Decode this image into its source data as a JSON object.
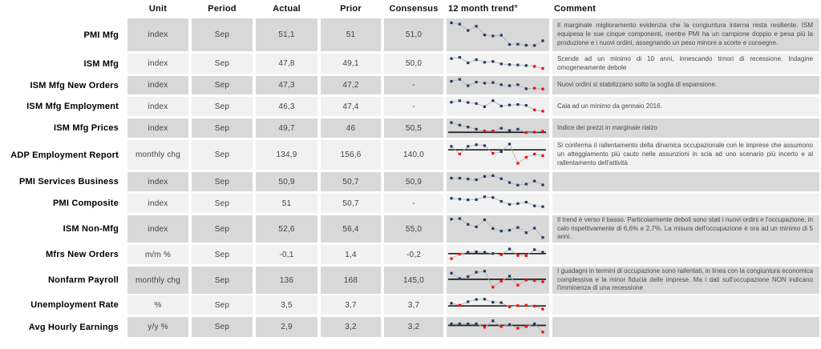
{
  "header": {
    "labels_col": "",
    "unit": "Unit",
    "period": "Period",
    "actual": "Actual",
    "prior": "Prior",
    "consensus": "Consensus",
    "trend": "12 month trend°",
    "comment": "Comment"
  },
  "colors": {
    "navy": "#1f3864",
    "red": "#ff0000",
    "connector": "#b3b3b3",
    "refline": "#1f1f1f",
    "row_dark": "#d8d8d8",
    "row_light": "#f1f1f1"
  },
  "rows": [
    {
      "label": "PMI Mfg",
      "unit": "index",
      "period": "Sep",
      "actual": "51,1",
      "prior": "51",
      "consensus": "51,0",
      "comment": "Il marginale miglioramento evidenzia che la congiuntura interna resta resiliente. ISM equipesa le sue cinque componenti, mentre PMI ha un campione doppio e pesa più la produzione e i nuovi ordini, assegnando un peso minore a scorte e consegne.",
      "trend": {
        "ref": null,
        "points": [
          6,
          11,
          35,
          19,
          52,
          56,
          53,
          88,
          87,
          91,
          92,
          74
        ],
        "red": []
      }
    },
    {
      "label": "ISM Mfg",
      "unit": "index",
      "period": "Sep",
      "actual": "47,8",
      "prior": "49,1",
      "consensus": "50,0",
      "comment": "Scende ad un minimo di 10 anni, innescando timori di recessione. Indagine omogeneamente debole",
      "trend": {
        "ref": null,
        "points": [
          16,
          7,
          47,
          24,
          43,
          37,
          55,
          60,
          63,
          67,
          73,
          88
        ],
        "red": [
          10,
          11
        ]
      }
    },
    {
      "label": "ISM Mfg New Orders",
      "unit": "index",
      "period": "Sep",
      "actual": "47,3",
      "prior": "47,2",
      "consensus": "-",
      "comment": "Nuovi ordini si stabilizzano sotto la soglia di espansione.",
      "trend": {
        "ref": null,
        "points": [
          20,
          4,
          57,
          27,
          36,
          31,
          49,
          57,
          49,
          82,
          78,
          85
        ],
        "red": [
          10,
          11
        ]
      }
    },
    {
      "label": "ISM Mfg Employment",
      "unit": "index",
      "period": "Sep",
      "actual": "46,3",
      "prior": "47,4",
      "consensus": "-",
      "comment": "Cala ad un minimo da gennaio 2016.",
      "trend": {
        "ref": null,
        "points": [
          20,
          8,
          22,
          30,
          55,
          8,
          50,
          42,
          38,
          45,
          80,
          90
        ],
        "red": [
          10,
          11
        ]
      }
    },
    {
      "label": "ISM Mfg Prices",
      "unit": "index",
      "period": "Sep",
      "actual": "49,7",
      "prior": "46",
      "consensus": "50,5",
      "comment": "Indice dei prezzi in marginale rialzo",
      "trend": {
        "ref": 0.72,
        "points": [
          10,
          30,
          45,
          62,
          75,
          75,
          55,
          72,
          62,
          88,
          85,
          78
        ],
        "red": [
          4,
          5,
          9,
          10,
          11
        ]
      }
    },
    {
      "label": "ADP Employment Report",
      "unit": "monthly chg",
      "period": "Sep",
      "actual": "134,9",
      "prior": "156,6",
      "consensus": "140,0",
      "comment": "Si conferma il rallentamento della dinamica occupazionale con le imprese che assumono un atteggiamento più cauto nelle assunzioni in scia ad uno scenario più incerto e al rallentamento dell'attività",
      "trend": {
        "ref": 0.33,
        "points": [
          15,
          48,
          15,
          8,
          12,
          45,
          38,
          5,
          88,
          62,
          48,
          55
        ],
        "red": [
          1,
          5,
          8,
          9,
          10,
          11
        ]
      }
    },
    {
      "label": "PMI Services Business",
      "unit": "index",
      "period": "Sep",
      "actual": "50,9",
      "prior": "50,7",
      "consensus": "50,9",
      "comment": "",
      "trend": {
        "ref": null,
        "points": [
          25,
          25,
          32,
          38,
          12,
          6,
          30,
          60,
          80,
          72,
          48,
          78
        ],
        "red": []
      }
    },
    {
      "label": "PMI Composite",
      "unit": "index",
      "period": "Sep",
      "actual": "51",
      "prior": "50,7",
      "consensus": "-",
      "comment": "",
      "trend": {
        "ref": null,
        "points": [
          14,
          20,
          26,
          24,
          2,
          8,
          38,
          61,
          55,
          44,
          73,
          79
        ],
        "red": []
      }
    },
    {
      "label": "ISM Non-Mfg",
      "unit": "index",
      "period": "Sep",
      "actual": "52,6",
      "prior": "56,4",
      "consensus": "55,0",
      "comment": "Il trend è verso il basso. Particolarmente deboli sono stati i nuovi ordini e l'occupazione, in calo rispettivamente di 6,6% e 2,7%. La misura dell'occupazione è ora ad un minimo di 5 anni.",
      "trend": {
        "ref": null,
        "points": [
          5,
          2,
          30,
          42,
          8,
          50,
          62,
          58,
          45,
          70,
          48,
          93
        ],
        "red": []
      }
    },
    {
      "label": "Mfrs New Orders",
      "unit": "m/m %",
      "period": "Sep",
      "actual": "-0,1",
      "prior": "1,4",
      "consensus": "-0,2",
      "comment": "",
      "trend": {
        "ref": 0.45,
        "points": [
          85,
          50,
          35,
          32,
          35,
          45,
          55,
          10,
          60,
          62,
          15,
          35
        ],
        "red": [
          0,
          1,
          6,
          8,
          9
        ]
      }
    },
    {
      "label": "Nonfarm Payroll",
      "unit": "monthly chg",
      "period": "Sep",
      "actual": "136",
      "prior": "168",
      "consensus": "145,0",
      "comment": "I guadagni in termini di occupazione sono rallentati, in linea con la congiuntura economica complessiva e la minor fiducia delle imprese. Ma i dati sull'occupazione NON indicano l'imminenza di una recessione",
      "trend": {
        "ref": 0.45,
        "points": [
          15,
          42,
          32,
          10,
          5,
          85,
          55,
          30,
          75,
          50,
          52,
          58
        ],
        "red": [
          5,
          6,
          8,
          9,
          10,
          11
        ]
      }
    },
    {
      "label": "Unemployment Rate",
      "unit": "%",
      "period": "Sep",
      "actual": "3,5",
      "prior": "3,7",
      "consensus": "3,7",
      "comment": "",
      "trend": {
        "ref": 0.55,
        "points": [
          40,
          55,
          28,
          10,
          8,
          32,
          35,
          68,
          58,
          55,
          62,
          85
        ],
        "red": [
          1,
          7,
          8,
          9,
          10,
          11
        ]
      }
    },
    {
      "label": "Avg Hourly Earnings",
      "unit": "y/y %",
      "period": "Sep",
      "actual": "2,9",
      "prior": "3,2",
      "consensus": "3,2",
      "comment": "",
      "trend": {
        "ref": 0.42,
        "points": [
          30,
          30,
          30,
          30,
          55,
          8,
          50,
          35,
          62,
          50,
          30,
          90
        ],
        "red": [
          4,
          6,
          8,
          9,
          11
        ]
      }
    }
  ]
}
